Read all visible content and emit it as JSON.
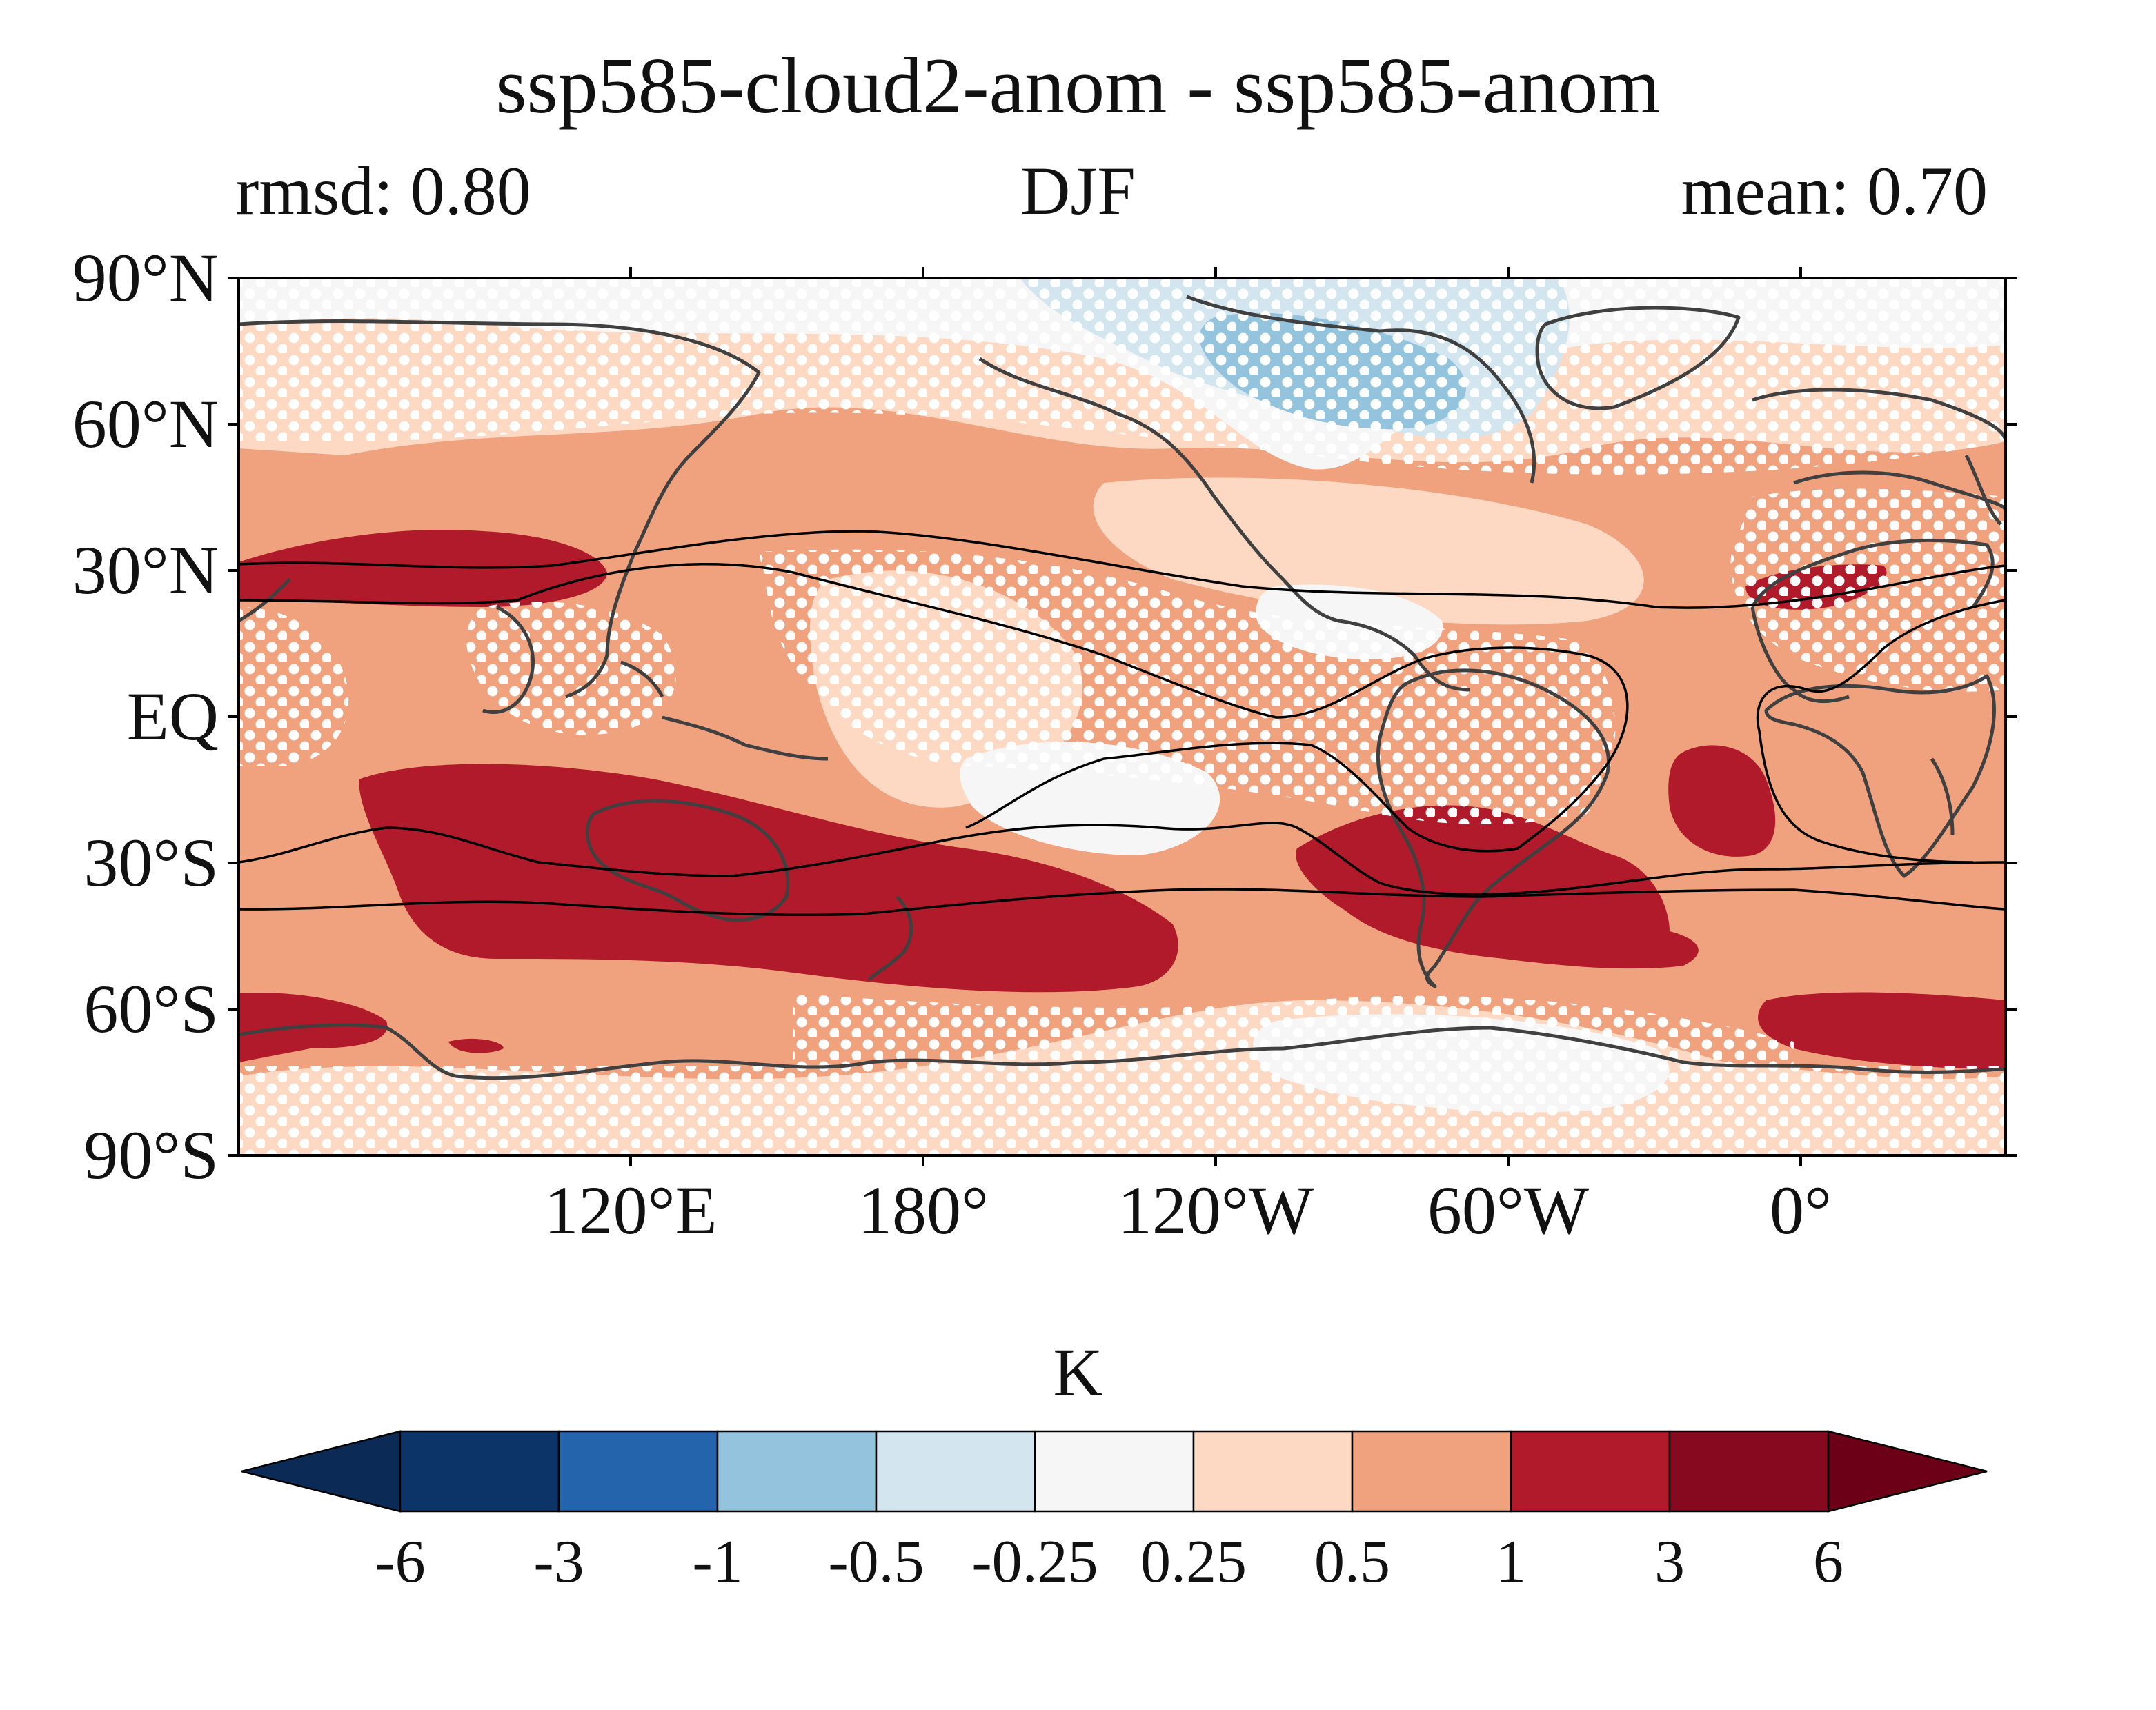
{
  "title": "ssp585-cloud2-anom - ssp585-anom",
  "subtitle": {
    "left": "rmsd: 0.80",
    "center": "DJF",
    "right": "mean: 0.70"
  },
  "y_ticks": [
    "90°N",
    "60°N",
    "30°N",
    "EQ",
    "30°S",
    "60°S",
    "90°S"
  ],
  "x_ticks": [
    "120°E",
    "180°",
    "120°W",
    "60°W",
    "0°"
  ],
  "colorbar": {
    "units": "K",
    "tick_labels": [
      "-6",
      "-3",
      "-1",
      "-0.5",
      "-0.25",
      "0.25",
      "0.5",
      "1",
      "3",
      "6"
    ],
    "colors": [
      "#0b2a56",
      "#0d3468",
      "#2464ac",
      "#93c3dd",
      "#d3e6f0",
      "#f6f6f6",
      "#fdd9c4",
      "#f0a27f",
      "#b01a2a",
      "#86091f",
      "#6b0016"
    ]
  },
  "map": {
    "projection": "PlateCarree",
    "stippling": "white dots",
    "contour_lines": "black"
  }
}
